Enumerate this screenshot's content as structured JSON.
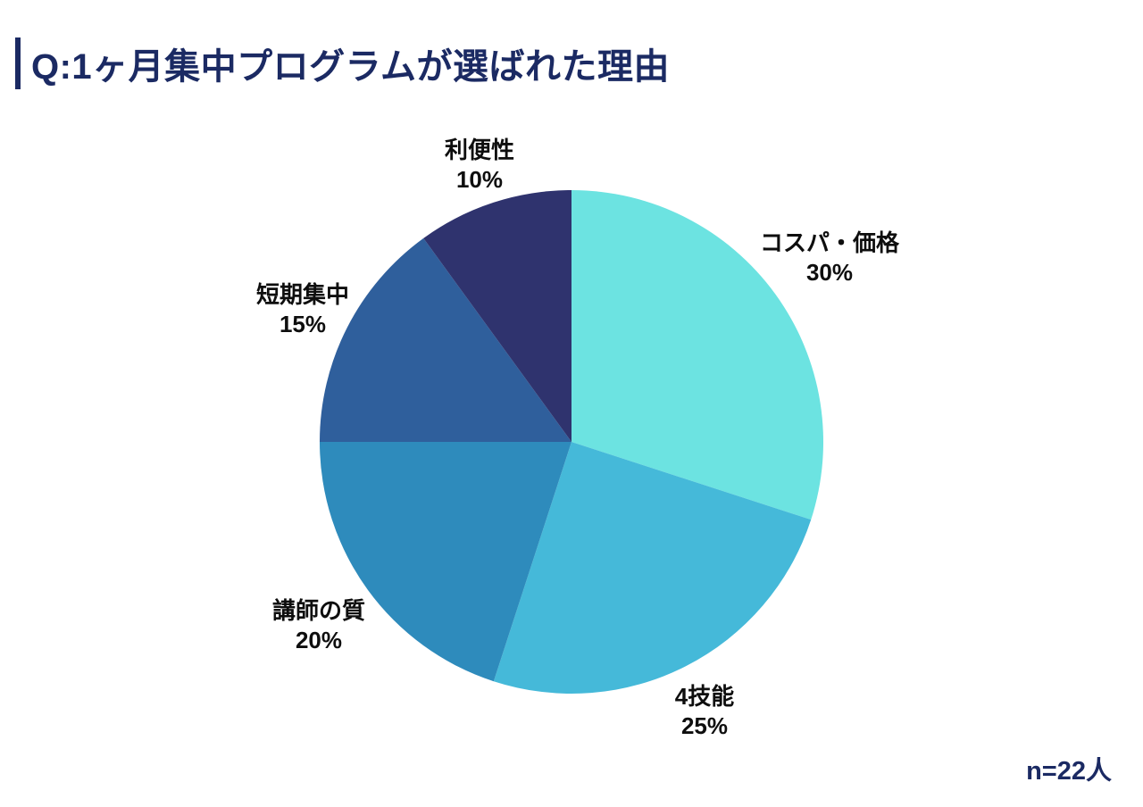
{
  "header": {
    "title": "Q:1ヶ月集中プログラムが選ばれた理由"
  },
  "colors": {
    "title_navy": "#1b2a63",
    "label_black": "#0e0e0e"
  },
  "chart_data": {
    "type": "pie",
    "title": "Q:1ヶ月集中プログラムが選ばれた理由",
    "start_angle_deg": 0,
    "direction": "clockwise",
    "sample_size": "n=22人",
    "legend_position": "outside-labels",
    "slices": [
      {
        "label": "コスパ・価格",
        "value": 30,
        "percent_label": "30%",
        "color": "#6ce3e1"
      },
      {
        "label": "4技能",
        "value": 25,
        "percent_label": "25%",
        "color": "#45b9d9"
      },
      {
        "label": "講師の質",
        "value": 20,
        "percent_label": "20%",
        "color": "#2e8bbc"
      },
      {
        "label": "短期集中",
        "value": 15,
        "percent_label": "15%",
        "color": "#2f5f9c"
      },
      {
        "label": "利便性",
        "value": 10,
        "percent_label": "10%",
        "color": "#2f336e"
      }
    ]
  }
}
